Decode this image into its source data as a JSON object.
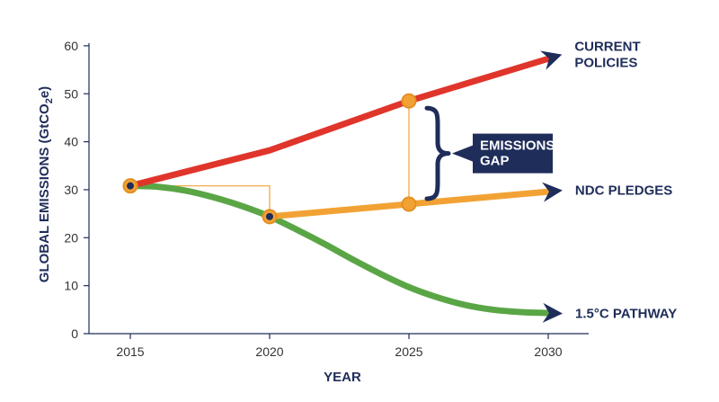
{
  "chart_data": {
    "type": "line",
    "xlabel": "YEAR",
    "ylabel": "GLOBAL EMISSIONS (GtCO",
    "ylabel_sub": "2",
    "ylabel_suffix": "e)",
    "x_ticks": [
      2015,
      2020,
      2025,
      2030
    ],
    "y_ticks": [
      0,
      10,
      20,
      30,
      40,
      50,
      60
    ],
    "xlim": [
      2010,
      2033
    ],
    "ylim": [
      0,
      60
    ],
    "grid": false,
    "legend": "none",
    "series": [
      {
        "name": "CURRENT POLICIES",
        "label_lines": [
          "CURRENT",
          "POLICIES"
        ],
        "color": "#e0352b",
        "x": [
          2015,
          2020,
          2025,
          2030
        ],
        "y": [
          30.8,
          38.2,
          48.5,
          57.3
        ]
      },
      {
        "name": "NDC PLEDGES",
        "label_lines": [
          "NDC PLEDGES"
        ],
        "color": "#f2a234",
        "x": [
          2020,
          2025,
          2030
        ],
        "y": [
          24.4,
          27.0,
          29.6
        ]
      },
      {
        "name": "1.5°C PATHWAY",
        "label_lines": [
          "1.5°C PATHWAY"
        ],
        "color": "#5aa646",
        "x": [
          2015,
          2016,
          2017,
          2018,
          2019,
          2020,
          2021,
          2022,
          2023,
          2024,
          2025,
          2026,
          2027,
          2028,
          2029,
          2030
        ],
        "y": [
          30.8,
          30.6,
          29.8,
          28.4,
          26.6,
          24.4,
          21.6,
          18.6,
          15.4,
          12.4,
          9.7,
          7.6,
          6.0,
          5.0,
          4.5,
          4.3
        ]
      }
    ],
    "markers": [
      {
        "x": 2015,
        "y": 30.8,
        "dot": true
      },
      {
        "x": 2020,
        "y": 24.4,
        "dot": true
      },
      {
        "x": 2025,
        "y": 48.5,
        "dot": false
      },
      {
        "x": 2025,
        "y": 27.0,
        "dot": false
      }
    ],
    "connector": {
      "from": [
        2015,
        30.8
      ],
      "corner": [
        2020,
        30.8
      ],
      "to": [
        2020,
        24.4
      ]
    },
    "gap_bracket": {
      "x": 2025,
      "y_top": 48.5,
      "y_bottom": 27.0
    },
    "annotation": {
      "lines": [
        "EMISSIONS",
        "GAP"
      ]
    },
    "colors": {
      "axis": "#1f2d5a",
      "arrow": "#1f2d5a",
      "marker_fill": "#f2a234",
      "marker_stroke": "#e39024",
      "dot": "#1f2d5a",
      "connector": "#f2a234",
      "gap_box": "#1f2d5a"
    }
  }
}
